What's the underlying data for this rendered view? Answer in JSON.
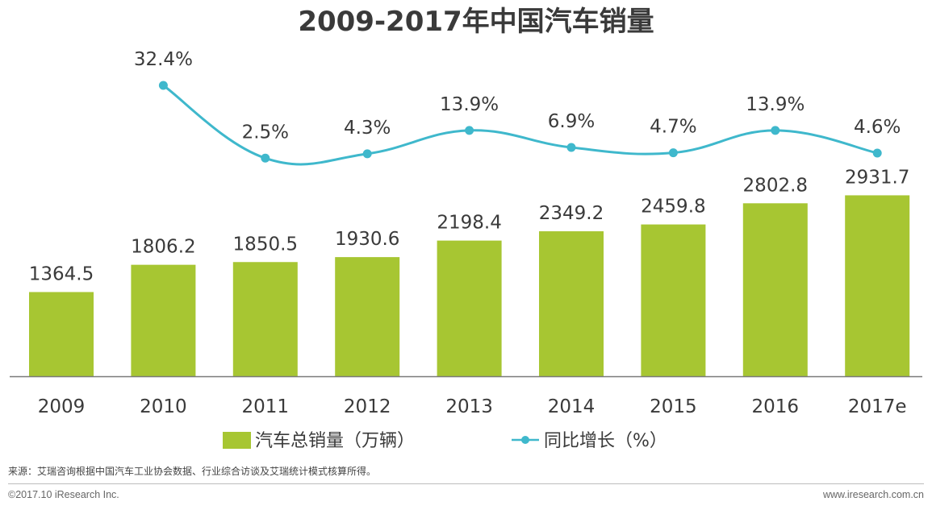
{
  "chart_data": {
    "type": "bar",
    "title": "2009-2017年中国汽车销量",
    "categories": [
      "2009",
      "2010",
      "2011",
      "2012",
      "2013",
      "2014",
      "2015",
      "2016",
      "2017e"
    ],
    "series": [
      {
        "name": "汽车总销量（万辆）",
        "type": "bar",
        "color": "#a7c632",
        "values": [
          1364.5,
          1806.2,
          1850.5,
          1930.6,
          2198.4,
          2349.2,
          2459.8,
          2802.8,
          2931.7
        ],
        "labels": [
          "1364.5",
          "1806.2",
          "1850.5",
          "1930.6",
          "2198.4",
          "2349.2",
          "2459.8",
          "2802.8",
          "2931.7"
        ]
      },
      {
        "name": "同比增长（%）",
        "type": "line",
        "color": "#3fb8cc",
        "values": [
          null,
          32.4,
          2.5,
          4.3,
          13.9,
          6.9,
          4.7,
          13.9,
          4.6
        ],
        "labels": [
          null,
          "32.4%",
          "2.5%",
          "4.3%",
          "13.9%",
          "6.9%",
          "4.7%",
          "13.9%",
          "4.6%"
        ]
      }
    ],
    "grid": false,
    "legend_position": "bottom-center"
  },
  "source_note": "来源：艾瑞咨询根据中国汽车工业协会数据、行业综合访谈及艾瑞统计模式核算所得。",
  "footer": {
    "copyright": "©2017.10 iResearch Inc.",
    "website": "www.iresearch.com.cn"
  }
}
